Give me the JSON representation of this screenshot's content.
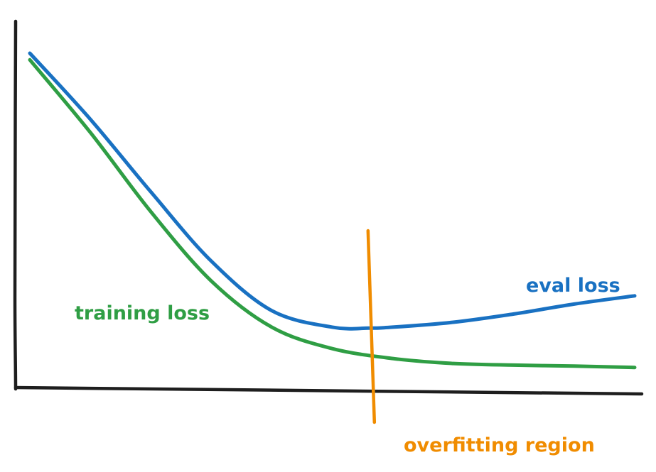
{
  "chart_data": {
    "type": "line",
    "title": "",
    "xlabel": "",
    "ylabel": "",
    "grid": false,
    "xlim": [
      0,
      100
    ],
    "ylim": [
      0,
      100
    ],
    "series": [
      {
        "name": "eval loss",
        "color": "#1971c2",
        "x": [
          0,
          10,
          20,
          30,
          40,
          50,
          56,
          60,
          70,
          80,
          90,
          100
        ],
        "y": [
          100,
          80,
          58,
          37,
          22,
          17,
          16.7,
          17,
          18.5,
          21,
          24,
          26.5
        ]
      },
      {
        "name": "training loss",
        "color": "#2f9e44",
        "x": [
          0,
          10,
          20,
          30,
          40,
          50,
          60,
          70,
          80,
          90,
          100
        ],
        "y": [
          98,
          76,
          52,
          31,
          17,
          10.5,
          7.5,
          6,
          5.5,
          5.2,
          4.8
        ]
      }
    ],
    "annotations": [
      {
        "name": "overfitting region",
        "color": "#f08c00",
        "x": 56.5,
        "text": "overfitting region"
      }
    ]
  }
}
